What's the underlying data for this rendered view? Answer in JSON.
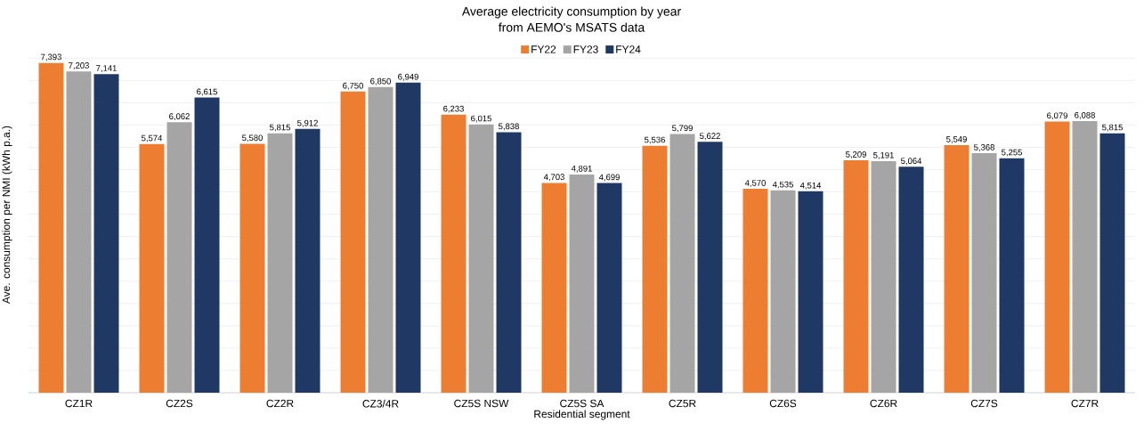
{
  "chart_data": {
    "type": "bar",
    "title": "Average electricity consumption by year",
    "subtitle": "from AEMO's MSATS data",
    "xlabel": "Residential segment",
    "ylabel": "Ave. consumption per NMI (kWh p.a.)",
    "categories": [
      "CZ1R",
      "CZ2S",
      "CZ2R",
      "CZ3/4R",
      "CZ5S NSW",
      "CZ5S SA",
      "CZ5R",
      "CZ6S",
      "CZ6R",
      "CZ7S",
      "CZ7R"
    ],
    "series": [
      {
        "name": "FY22",
        "color": "#ed7d31",
        "values": [
          7393,
          5574,
          5580,
          6750,
          6233,
          4703,
          5536,
          4570,
          5209,
          5549,
          6079
        ],
        "value_labels": [
          "7,393",
          "5,574",
          "5,580",
          "6,750",
          "6,233",
          "4,703",
          "5,536",
          "4,570",
          "5,209",
          "5,549",
          "6,079"
        ]
      },
      {
        "name": "FY23",
        "color": "#a5a5a5",
        "values": [
          7203,
          6062,
          5815,
          6850,
          6015,
          4891,
          5799,
          4535,
          5191,
          5368,
          6088
        ],
        "value_labels": [
          "7,203",
          "6,062",
          "5,815",
          "6,850",
          "6,015",
          "4,891",
          "5,799",
          "4,535",
          "5,191",
          "5,368",
          "6,088"
        ]
      },
      {
        "name": "FY24",
        "color": "#203864",
        "values": [
          7141,
          6615,
          5912,
          6949,
          5838,
          4699,
          5622,
          4514,
          5064,
          5255,
          5815
        ],
        "value_labels": [
          "7,141",
          "6,615",
          "5,912",
          "6,949",
          "5,838",
          "4,699",
          "5,622",
          "4,514",
          "5,064",
          "5,255",
          "5,815"
        ]
      }
    ],
    "grid": "y",
    "legend": "top",
    "tick_labels": "x"
  }
}
